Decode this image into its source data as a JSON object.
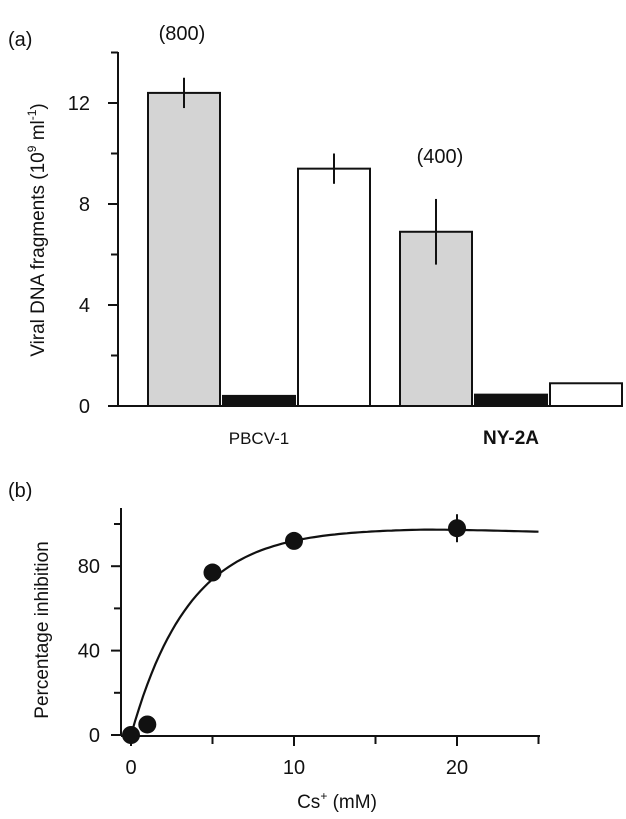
{
  "chart_data": [
    {
      "panel_label": "(a)",
      "type": "bar",
      "ylabel": "Viral DNA fragments (10",
      "ylabel_sup": "9",
      "ylabel_unit": " ml",
      "ylabel_unit_sup": "-1",
      "ylabel_close": ")",
      "ylim": [
        0,
        14
      ],
      "yticks": [
        0,
        4,
        8,
        12
      ],
      "categories": [
        "PBCV-1",
        "NY-2A"
      ],
      "series": [
        {
          "fill": "#d4d4d4",
          "values": [
            12.4,
            6.9
          ],
          "errors": [
            0.6,
            1.3
          ]
        },
        {
          "fill": "#111111",
          "values": [
            0.4,
            0.45
          ],
          "errors": [
            0,
            0
          ]
        },
        {
          "fill": "#ffffff",
          "values": [
            9.4,
            0.9
          ],
          "errors": [
            0.6,
            0
          ]
        }
      ],
      "annotations": [
        "(800)",
        "(400)"
      ]
    },
    {
      "panel_label": "(b)",
      "type": "scatter",
      "xlabel": "Cs",
      "xlabel_sup": "+",
      "xlabel_unit": " (mM)",
      "ylabel": "Percentage inhibition",
      "xlim": [
        -0.5,
        25
      ],
      "ylim": [
        -4,
        108
      ],
      "xticks": [
        0,
        10,
        20
      ],
      "yticks": [
        0,
        40,
        80
      ],
      "x": [
        0,
        1,
        5,
        10,
        20
      ],
      "y": [
        0,
        5,
        77,
        92,
        98
      ],
      "fit_curve": {
        "plateau": 98,
        "k": 0.28
      }
    }
  ]
}
